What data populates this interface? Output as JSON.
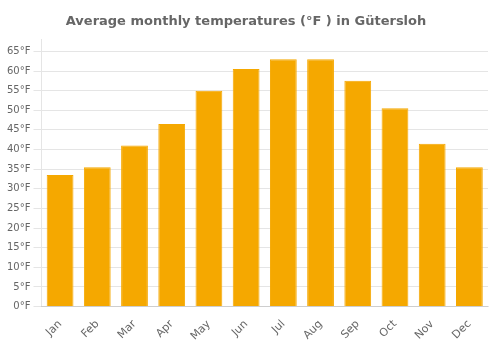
{
  "chart_data": {
    "type": "bar",
    "title": "Average monthly temperatures (°F ) in Gütersloh",
    "categories": [
      "Jan",
      "Feb",
      "Mar",
      "Apr",
      "May",
      "Jun",
      "Jul",
      "Aug",
      "Sep",
      "Oct",
      "Nov",
      "Dec"
    ],
    "values": [
      33.5,
      35.5,
      41.0,
      46.5,
      55.0,
      60.5,
      63.0,
      63.0,
      57.5,
      50.5,
      41.5,
      35.5
    ],
    "color": "#F5A800",
    "ylim": [
      0,
      68
    ],
    "yticks": [
      {
        "value": 0,
        "label": "0°F"
      },
      {
        "value": 5,
        "label": "5°F"
      },
      {
        "value": 10,
        "label": "10°F"
      },
      {
        "value": 15,
        "label": "15°F"
      },
      {
        "value": 20,
        "label": "20°F"
      },
      {
        "value": 25,
        "label": "25°F"
      },
      {
        "value": 30,
        "label": "30°F"
      },
      {
        "value": 35,
        "label": "35°F"
      },
      {
        "value": 40,
        "label": "40°F"
      },
      {
        "value": 45,
        "label": "45°F"
      },
      {
        "value": 50,
        "label": "50°F"
      },
      {
        "value": 55,
        "label": "55°F"
      },
      {
        "value": 60,
        "label": "60°F"
      },
      {
        "value": 65,
        "label": "65°F"
      }
    ],
    "grid": true
  }
}
